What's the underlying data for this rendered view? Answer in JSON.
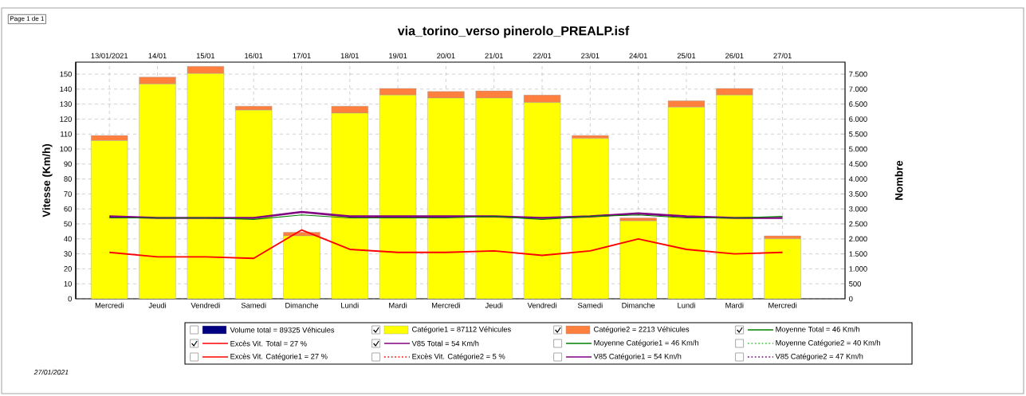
{
  "chart_data": {
    "type": "bar",
    "title": "via_torino_verso pinerolo_PREALP.isf",
    "ylabel": "Vitesse (Km/h)",
    "y2label": "Nombre",
    "categories": [
      "Mercredi",
      "Jeudi",
      "Vendredi",
      "Samedi",
      "Dimanche",
      "Lundi",
      "Mardi",
      "Mercredi",
      "Jeudi",
      "Vendredi",
      "Samedi",
      "Dimanche",
      "Lundi",
      "Mardi",
      "Mercredi"
    ],
    "annotations": [
      "13/01/2021",
      "14/01",
      "15/01",
      "16/01",
      "17/01",
      "18/01",
      "19/01",
      "20/01",
      "21/01",
      "22/01",
      "23/01",
      "24/01",
      "25/01",
      "26/01",
      "27/01",
      "Page 1 de 1",
      "27/01/2021"
    ],
    "stacked": true,
    "grid": true,
    "legend": "bottom",
    "ylim": [
      0,
      158
    ],
    "yticks": [
      0,
      10,
      20,
      30,
      40,
      50,
      60,
      70,
      80,
      90,
      100,
      110,
      120,
      130,
      140,
      150
    ],
    "y2lim": [
      0,
      7900
    ],
    "y2ticks": [
      0,
      500,
      {
        "value": 1000,
        "label": "1.000"
      },
      {
        "value": 1500,
        "label": "1.500"
      },
      {
        "value": 2000,
        "label": "2.000"
      },
      {
        "value": 2500,
        "label": "2.500"
      },
      {
        "value": 3000,
        "label": "3.000"
      },
      {
        "value": 3500,
        "label": "3.500"
      },
      {
        "value": 4000,
        "label": "4.000"
      },
      {
        "value": 4500,
        "label": "4.500"
      },
      {
        "value": 5000,
        "label": "5.000"
      },
      {
        "value": 5500,
        "label": "5.500"
      },
      {
        "value": 6000,
        "label": "6.000"
      },
      {
        "value": 6500,
        "label": "6.500"
      },
      {
        "value": 7000,
        "label": "7.000"
      },
      {
        "value": 7500,
        "label": "7.500"
      }
    ],
    "series": [
      {
        "name": "Volume total = 89325 Véhicules",
        "axis": "y2",
        "color": "#000080",
        "values": [
          null,
          null,
          null,
          null,
          null,
          null,
          null,
          null,
          null,
          null,
          null,
          null,
          null,
          null,
          null
        ]
      },
      {
        "name": "Catégorie1 = 87112 Véhicules",
        "axis": "y2",
        "color": "#ffff00",
        "values": [
          5280,
          7170,
          7520,
          6300,
          2100,
          6200,
          6800,
          6700,
          6700,
          6550,
          5350,
          2600,
          6400,
          6800,
          2000
        ]
      },
      {
        "name": "Catégorie2 = 2213 Véhicules",
        "axis": "y2",
        "color": "#ff7f3f",
        "values": [
          170,
          230,
          240,
          130,
          120,
          230,
          220,
          220,
          240,
          250,
          100,
          100,
          210,
          220,
          100
        ]
      },
      {
        "name": "Moyenne Total  = 46 Km/h",
        "type": "line",
        "color": "#008000",
        "values": [
          54,
          54,
          54,
          53,
          56,
          54,
          54,
          54,
          55,
          53,
          55,
          56,
          54,
          54,
          55
        ]
      },
      {
        "name": "Excès Vit. Total  = 27 %",
        "type": "line",
        "color": "#ff0000",
        "values": [
          31,
          28,
          28,
          27,
          46,
          33,
          31,
          31,
          32,
          29,
          32,
          40,
          33,
          30,
          31
        ]
      },
      {
        "name": "V85 Total  = 54 Km/h",
        "type": "line",
        "color": "#800080",
        "values": [
          55,
          54,
          54,
          54,
          58,
          55,
          55,
          55,
          55,
          54,
          55,
          57,
          55,
          54,
          54
        ]
      },
      {
        "name": "Moyenne Catégorie1 = 46 Km/h",
        "type": "line",
        "color": "#008000",
        "values": [
          null,
          null,
          null,
          null,
          null,
          null,
          null,
          null,
          null,
          null,
          null,
          null,
          null,
          null,
          null
        ]
      },
      {
        "name": "Moyenne Catégorie2 = 40 Km/h",
        "type": "line",
        "line_style": "dotted",
        "color": "#33cc33",
        "values": [
          null,
          null,
          null,
          null,
          null,
          null,
          null,
          null,
          null,
          null,
          null,
          null,
          null,
          null,
          null
        ]
      },
      {
        "name": "Excès Vit. Catégorie1 = 27 %",
        "type": "line",
        "color": "#ff0000",
        "values": [
          null,
          null,
          null,
          null,
          null,
          null,
          null,
          null,
          null,
          null,
          null,
          null,
          null,
          null,
          null
        ]
      },
      {
        "name": "Excès Vit. Catégorie2 = 5 %",
        "type": "line",
        "line_style": "dotted",
        "color": "#ff0000",
        "values": [
          null,
          null,
          null,
          null,
          null,
          null,
          null,
          null,
          null,
          null,
          null,
          null,
          null,
          null,
          null
        ]
      },
      {
        "name": "V85 Catégorie1 = 54 Km/h",
        "type": "line",
        "color": "#800080",
        "values": [
          null,
          null,
          null,
          null,
          null,
          null,
          null,
          null,
          null,
          null,
          null,
          null,
          null,
          null,
          null
        ]
      },
      {
        "name": "V85 Catégorie2 = 47 Km/h",
        "type": "line",
        "line_style": "dotted",
        "color": "#800080",
        "values": [
          null,
          null,
          null,
          null,
          null,
          null,
          null,
          null,
          null,
          null,
          null,
          null,
          null,
          null,
          null
        ]
      }
    ]
  }
}
